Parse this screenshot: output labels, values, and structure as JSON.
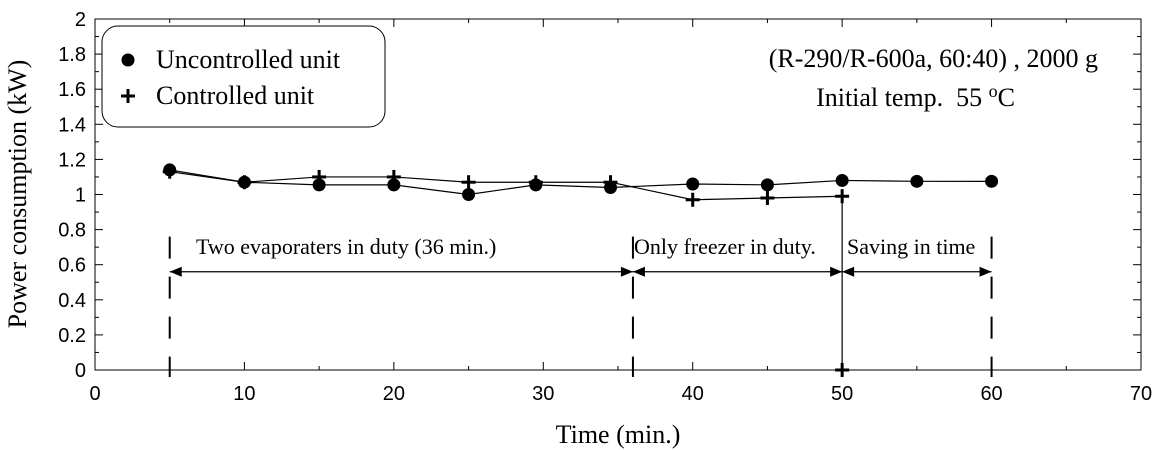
{
  "chart_data": {
    "type": "line",
    "xlabel": "Time (min.)",
    "ylabel": "Power consumption (kW)",
    "xlim": [
      0,
      70
    ],
    "ylim": [
      0,
      2
    ],
    "x_ticks": [
      "0",
      "10",
      "20",
      "30",
      "40",
      "50",
      "60",
      "70"
    ],
    "y_ticks": [
      "0",
      "0.2",
      "0.4",
      "0.6",
      "0.8",
      "1",
      "1.2",
      "1.4",
      "1.6",
      "1.8",
      "2"
    ],
    "grid": false,
    "legend_position": "top-left",
    "series": [
      {
        "name": "Uncontrolled unit",
        "marker": "circle",
        "x": [
          5,
          10,
          15,
          20,
          25,
          29.5,
          34.5,
          40,
          45,
          50,
          55,
          60
        ],
        "y": [
          1.14,
          1.07,
          1.055,
          1.055,
          1.0,
          1.055,
          1.04,
          1.06,
          1.055,
          1.08,
          1.075,
          1.075
        ]
      },
      {
        "name": "Controlled unit",
        "marker": "plus",
        "x": [
          5,
          10,
          15,
          20,
          25,
          29.5,
          34.5,
          40,
          45,
          50,
          50
        ],
        "y": [
          1.13,
          1.07,
          1.1,
          1.1,
          1.07,
          1.07,
          1.07,
          0.97,
          0.98,
          0.99,
          0.0
        ]
      }
    ],
    "annotations": {
      "title_line1": "(R-290/R-600a, 60:40) , 2000 g",
      "title_line2_prefix": "Initial temp.  55 ",
      "title_line2_unit_sup": "o",
      "title_line2_unit": "C",
      "phase1_label": "Two evaporaters in duty (36 min.)",
      "phase2_label": "Only freezer in duty.",
      "phase3_label": "Saving in time",
      "phase_boundaries_x": [
        5,
        36,
        50,
        60
      ],
      "arrow_y": 0.56
    }
  }
}
